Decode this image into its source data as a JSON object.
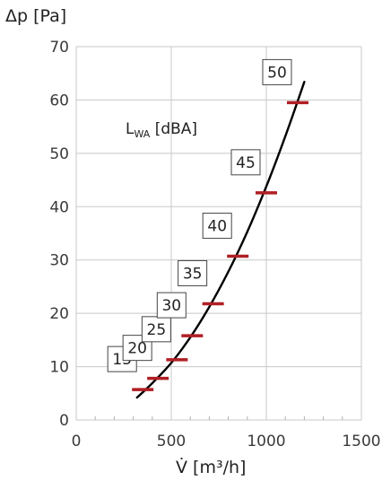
{
  "chart_data": {
    "type": "line",
    "ylabel": "Δp [Pa]",
    "xlabel": "V̇ [m³/h]",
    "xlim": [
      0,
      1500
    ],
    "ylim": [
      0,
      70
    ],
    "x_ticks": [
      "0",
      "500",
      "1000",
      "1500"
    ],
    "y_ticks": [
      "0",
      "10",
      "20",
      "30",
      "40",
      "50",
      "60",
      "70"
    ],
    "grid": true,
    "annotation": {
      "main": "L",
      "sub": "WA",
      "rest": " [dBA]"
    },
    "curve": {
      "x": [
        320,
        400,
        500,
        600,
        700,
        800,
        900,
        1000,
        1100,
        1200
      ],
      "y": [
        4.2,
        6.9,
        10.7,
        15.5,
        21.2,
        27.8,
        35.3,
        43.8,
        53.2,
        63.4
      ]
    },
    "markers": [
      {
        "x": 350,
        "y": 5.7,
        "label": "15"
      },
      {
        "x": 430,
        "y": 7.8,
        "label": "20"
      },
      {
        "x": 530,
        "y": 11.3,
        "label": "25"
      },
      {
        "x": 610,
        "y": 15.8,
        "label": "30"
      },
      {
        "x": 720,
        "y": 21.8,
        "label": "35"
      },
      {
        "x": 850,
        "y": 30.7,
        "label": "40"
      },
      {
        "x": 1000,
        "y": 42.6,
        "label": "45"
      },
      {
        "x": 1165,
        "y": 59.5,
        "label": "50"
      }
    ],
    "colors": {
      "curve": "#000000",
      "marker": "#b01f24",
      "grid": "#c8c8c8"
    }
  }
}
